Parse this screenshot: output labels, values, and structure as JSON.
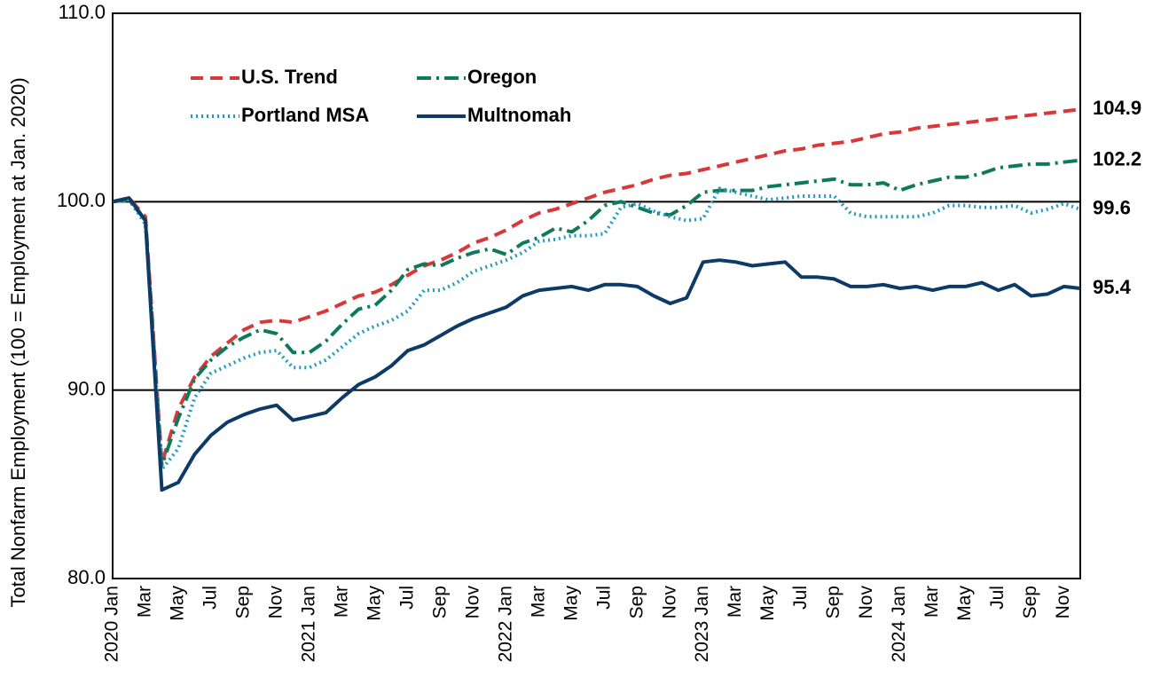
{
  "chart_data": {
    "type": "line",
    "ylabel": "Total Nonfarm Employment (100 = Employment at Jan. 2020)",
    "categories": [
      "2020 Jan",
      null,
      "Mar",
      null,
      "May",
      null,
      "Jul",
      null,
      "Sep",
      null,
      "Nov",
      null,
      "2021 Jan",
      null,
      "Mar",
      null,
      "May",
      null,
      "Jul",
      null,
      "Sep",
      null,
      "Nov",
      null,
      "2022 Jan",
      null,
      "Mar",
      null,
      "May",
      null,
      "Jul",
      null,
      "Sep",
      null,
      "Nov",
      null,
      "2023 Jan",
      null,
      "Mar",
      null,
      "May",
      null,
      "Jul",
      null,
      "Sep",
      null,
      "Nov",
      null,
      "2024 Jan",
      null,
      "Mar",
      null,
      "May",
      null,
      "Jul",
      null,
      "Sep",
      null,
      "Nov",
      null
    ],
    "series": [
      {
        "name": "U.S. Trend",
        "color": "#d9383a",
        "dash": "14 8",
        "values": [
          100.0,
          100.2,
          99.2,
          86.1,
          89.0,
          90.7,
          91.8,
          92.5,
          93.2,
          93.6,
          93.7,
          93.6,
          93.9,
          94.2,
          94.6,
          95.0,
          95.2,
          95.6,
          96.1,
          96.6,
          96.9,
          97.3,
          97.8,
          98.1,
          98.5,
          99.0,
          99.4,
          99.6,
          99.9,
          100.2,
          100.5,
          100.7,
          100.9,
          101.2,
          101.4,
          101.5,
          101.7,
          101.9,
          102.1,
          102.3,
          102.5,
          102.7,
          102.8,
          103.0,
          103.1,
          103.2,
          103.4,
          103.6,
          103.7,
          103.9,
          104.0,
          104.1,
          104.2,
          104.3,
          104.4,
          104.5,
          104.6,
          104.7,
          104.8,
          104.9
        ]
      },
      {
        "name": "Oregon",
        "color": "#0f7a5a",
        "dash": "16 6 3 6",
        "values": [
          100.0,
          100.1,
          99.0,
          86.0,
          88.5,
          90.6,
          91.6,
          92.3,
          92.8,
          93.2,
          93.0,
          92.0,
          92.0,
          92.6,
          93.5,
          94.3,
          94.5,
          95.3,
          96.4,
          96.7,
          96.6,
          97.0,
          97.3,
          97.5,
          97.2,
          97.8,
          98.1,
          98.6,
          98.4,
          99.0,
          99.8,
          100.0,
          99.7,
          99.4,
          99.3,
          99.8,
          100.5,
          100.6,
          100.6,
          100.6,
          100.8,
          100.9,
          101.0,
          101.1,
          101.2,
          100.9,
          100.9,
          101.0,
          100.6,
          100.9,
          101.1,
          101.3,
          101.3,
          101.5,
          101.8,
          101.9,
          102.0,
          102.0,
          102.1,
          102.2
        ]
      },
      {
        "name": "Portland MSA",
        "color": "#1e9bc0",
        "dash": "2 4",
        "values": [
          100.0,
          100.1,
          98.8,
          85.8,
          86.9,
          89.6,
          90.9,
          91.3,
          91.7,
          92.0,
          92.1,
          91.2,
          91.2,
          91.6,
          92.3,
          93.0,
          93.4,
          93.7,
          94.2,
          95.3,
          95.3,
          95.7,
          96.3,
          96.6,
          96.9,
          97.3,
          97.9,
          98.0,
          98.2,
          98.2,
          98.3,
          99.7,
          99.9,
          99.5,
          99.2,
          99.0,
          99.1,
          100.7,
          100.5,
          100.3,
          100.1,
          100.2,
          100.3,
          100.3,
          100.3,
          99.4,
          99.2,
          99.2,
          99.2,
          99.2,
          99.4,
          99.8,
          99.8,
          99.7,
          99.7,
          99.8,
          99.4,
          99.6,
          99.9,
          99.6
        ]
      },
      {
        "name": "Multnomah",
        "color": "#0d3a66",
        "dash": "none",
        "values": [
          100.0,
          100.2,
          99.0,
          84.7,
          85.1,
          86.6,
          87.6,
          88.3,
          88.7,
          89.0,
          89.2,
          88.4,
          88.6,
          88.8,
          89.6,
          90.3,
          90.7,
          91.3,
          92.1,
          92.4,
          92.9,
          93.4,
          93.8,
          94.1,
          94.4,
          95.0,
          95.3,
          95.4,
          95.5,
          95.3,
          95.6,
          95.6,
          95.5,
          95.0,
          94.6,
          94.9,
          96.8,
          96.9,
          96.8,
          96.6,
          96.7,
          96.8,
          96.0,
          96.0,
          95.9,
          95.5,
          95.5,
          95.6,
          95.4,
          95.5,
          95.3,
          95.5,
          95.5,
          95.7,
          95.3,
          95.6,
          95.0,
          95.1,
          95.5,
          95.4
        ]
      }
    ],
    "ylim": [
      80,
      110
    ],
    "yticks": [
      {
        "value": 80,
        "label": "80.0"
      },
      {
        "value": 90,
        "label": "90.0"
      },
      {
        "value": 100,
        "label": "100.0"
      },
      {
        "value": 110,
        "label": "110.0"
      }
    ],
    "grid": true
  }
}
